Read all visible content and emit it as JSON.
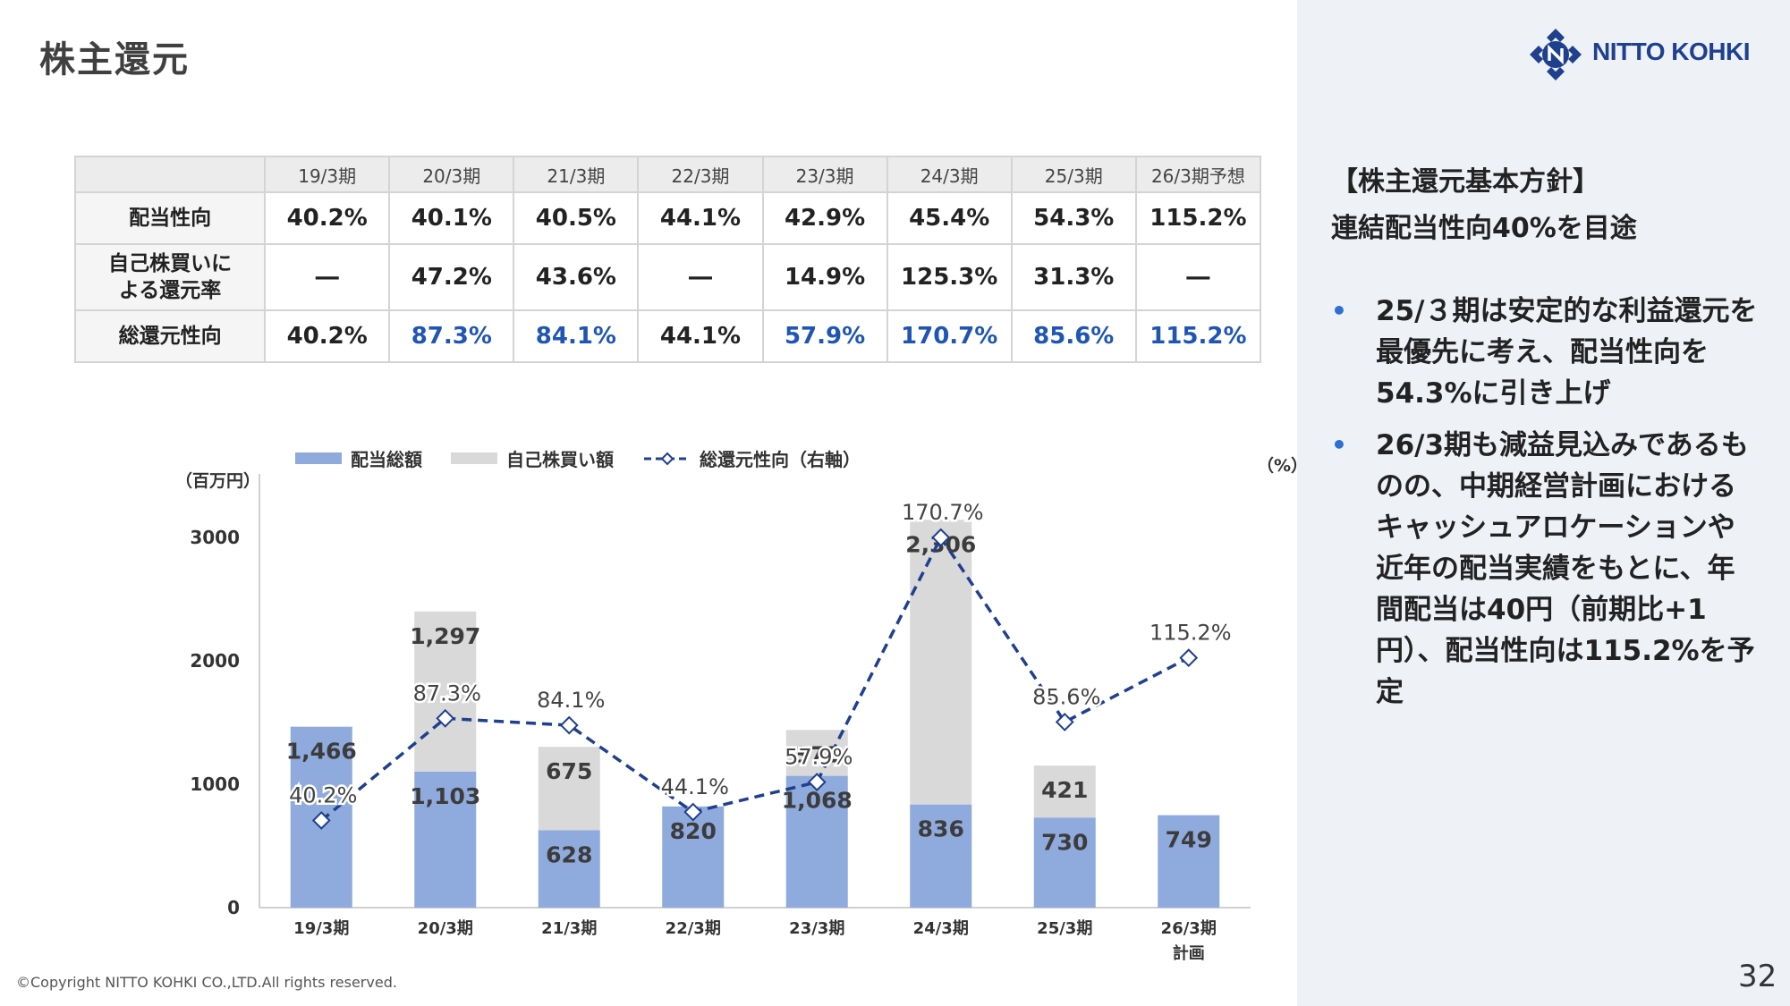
{
  "page": {
    "title": "株主還元",
    "copyright": "©Copyright NITTO KOHKI CO.,LTD.All rights reserved.",
    "page_number": "32"
  },
  "logo": {
    "text": "NITTO KOHKI",
    "color": "#1f3f8f"
  },
  "policy": {
    "heading_line1": "【株主還元基本方針】",
    "heading_line2": "連結配当性向40%を目途",
    "bullets": [
      "25/３期は安定的な利益還元を最優先に考え、配当性向を54.3%に引き上げ",
      "26/3期も減益見込みであるものの、中期経営計画におけるキャッシュアロケーションや近年の配当実績をもとに、年間配当は40円（前期比+1円）、配当性向は115.2%を予定"
    ],
    "bullet_color": "#2e6fd1"
  },
  "table": {
    "headers": [
      "19/3期",
      "20/3期",
      "21/3期",
      "22/3期",
      "23/3期",
      "24/3期",
      "25/3期",
      "26/3期予想"
    ],
    "rows": [
      {
        "label": "配当性向",
        "values": [
          "40.2%",
          "40.1%",
          "40.5%",
          "44.1%",
          "42.9%",
          "45.4%",
          "54.3%",
          "115.2%"
        ],
        "blue": [
          false,
          false,
          false,
          false,
          false,
          false,
          false,
          false
        ]
      },
      {
        "label_line1": "自己株買いに",
        "label_line2": "よる還元率",
        "values": [
          "―",
          "47.2%",
          "43.6%",
          "―",
          "14.9%",
          "125.3%",
          "31.3%",
          "―"
        ],
        "blue": [
          false,
          false,
          false,
          false,
          false,
          false,
          false,
          false
        ]
      },
      {
        "label": "総還元性向",
        "values": [
          "40.2%",
          "87.3%",
          "84.1%",
          "44.1%",
          "57.9%",
          "170.7%",
          "85.6%",
          "115.2%"
        ],
        "blue": [
          false,
          true,
          true,
          false,
          true,
          true,
          true,
          true
        ]
      }
    ],
    "highlight_color": "#1f55b3"
  },
  "chart_data": {
    "type": "bar",
    "stacked": true,
    "categories": [
      "19/3期",
      "20/3期",
      "21/3期",
      "22/3期",
      "23/3期",
      "24/3期",
      "25/3期",
      "26/3期"
    ],
    "category_sublabels": [
      "",
      "",
      "",
      "",
      "",
      "",
      "",
      "計画"
    ],
    "series": [
      {
        "name": "配当総額",
        "values": [
          1466,
          1103,
          628,
          820,
          1068,
          836,
          730,
          749
        ],
        "labels": [
          "1,466",
          "1,103",
          "628",
          "820",
          "1,068",
          "836",
          "730",
          "749"
        ],
        "color": "#8faadc"
      },
      {
        "name": "自己株買い額",
        "values": [
          0,
          1297,
          675,
          0,
          372,
          2306,
          421,
          0
        ],
        "labels": [
          "",
          "1,297",
          "675",
          "",
          "372",
          "2,306",
          "421",
          ""
        ],
        "color": "#d9d9d9"
      }
    ],
    "line_series": {
      "name": "総還元性向（右軸）",
      "values": [
        40.2,
        87.3,
        84.1,
        44.1,
        57.9,
        170.7,
        85.6,
        115.2
      ],
      "labels": [
        "40.2%",
        "87.3%",
        "84.1%",
        "44.1%",
        "57.9%",
        "170.7%",
        "85.6%",
        "115.2%"
      ],
      "color": "#1f3f8f"
    },
    "ylabel": "（百万円）",
    "ylabel_right": "（%）",
    "y_ticks": [
      "0",
      "1000",
      "2000",
      "3000"
    ],
    "ylim": [
      0,
      3500
    ],
    "legend_position": "top"
  }
}
